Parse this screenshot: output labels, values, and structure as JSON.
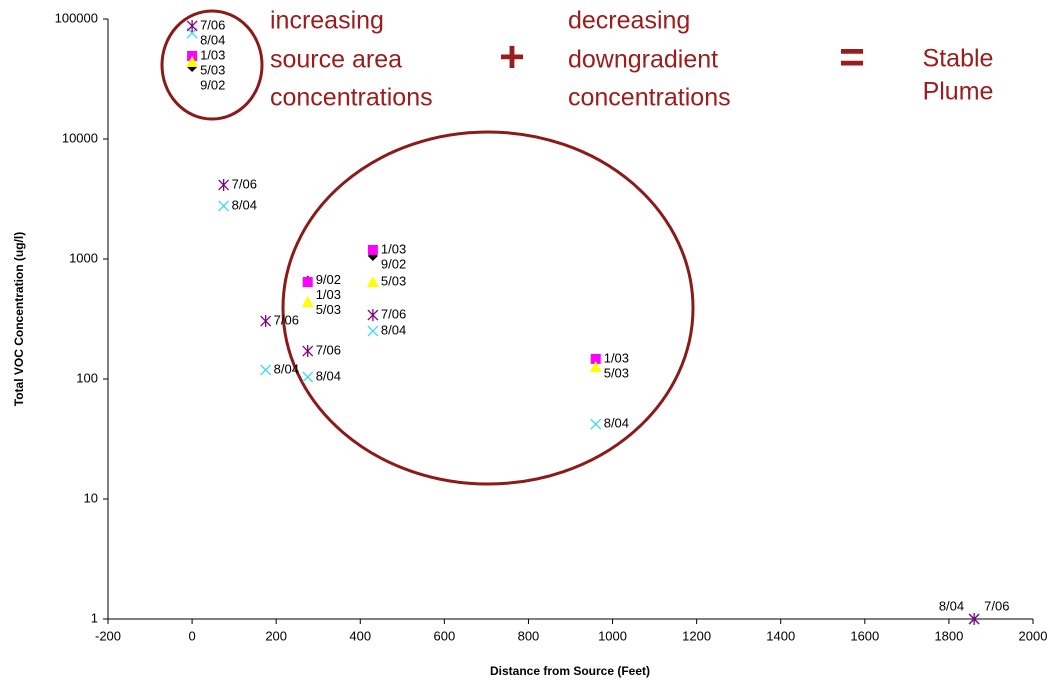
{
  "chart_data": {
    "type": "scatter",
    "xlabel": "Distance from Source (Feet)",
    "ylabel": "Total VOC Concentration (ug/l)",
    "xlim": [
      -200,
      2000
    ],
    "xticks": [
      -200,
      0,
      200,
      400,
      600,
      800,
      1000,
      1200,
      1400,
      1600,
      1800,
      2000
    ],
    "ylim": [
      1,
      100000
    ],
    "yticks": [
      1,
      10,
      100,
      1000,
      10000,
      100000
    ],
    "ylog": true,
    "grid": false,
    "series": [
      {
        "name": "9/02",
        "color": "#000000",
        "marker": "diamond",
        "x": [
          0,
          275,
          430
        ],
        "values": [
          39800,
          660,
          1060
        ]
      },
      {
        "name": "1/03",
        "color": "#ff00ff",
        "marker": "square",
        "x": [
          0,
          275,
          430,
          960
        ],
        "values": [
          49200,
          643,
          1190,
          147
        ]
      },
      {
        "name": "5/03",
        "color": "#ffff00",
        "marker": "triangle",
        "x": [
          0,
          275,
          430,
          960
        ],
        "values": [
          43800,
          438,
          643,
          126
        ]
      },
      {
        "name": "8/04",
        "color": "#33ddee",
        "marker": "x",
        "x": [
          0,
          75,
          175,
          275,
          430,
          960,
          1860
        ],
        "values": [
          76400,
          2770,
          119,
          104,
          251,
          42,
          1
        ]
      },
      {
        "name": "7/06",
        "color": "#800080",
        "marker": "asterisk",
        "x": [
          0,
          75,
          175,
          275,
          430,
          1860
        ],
        "values": [
          87500,
          4140,
          304,
          171,
          341,
          1
        ]
      }
    ],
    "annotations": [
      [
        "increasing",
        "source area",
        "concentrations"
      ],
      [
        "+"
      ],
      [
        "decreasing",
        "downgradient",
        "concentrations"
      ],
      [
        "="
      ],
      [
        "Stable",
        "Plume"
      ]
    ]
  }
}
